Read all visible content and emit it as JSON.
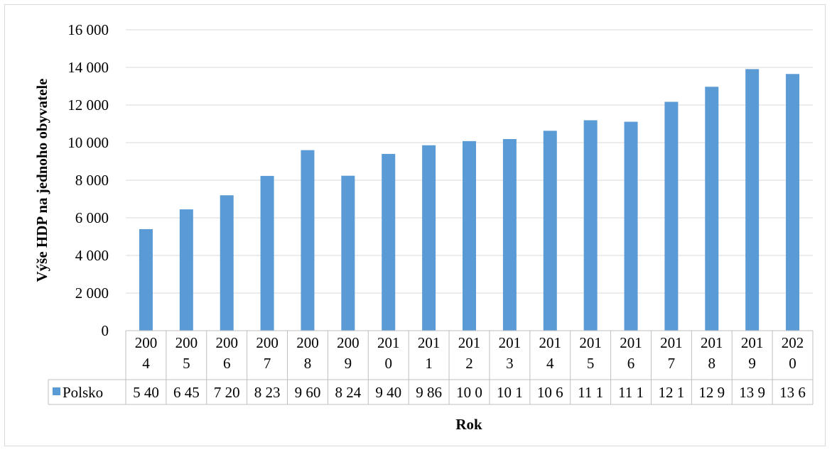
{
  "chart_data": {
    "type": "bar",
    "title": "",
    "ylabel": "Výše HDP na jednoho obyvatele",
    "xlabel": "Rok",
    "ylim": [
      0,
      16000
    ],
    "yticks": [
      0,
      2000,
      4000,
      6000,
      8000,
      10000,
      12000,
      14000,
      16000
    ],
    "ytick_labels": [
      "0",
      "2 000",
      "4 000",
      "6 000",
      "8 000",
      "10 000",
      "12 000",
      "14 000",
      "16 000"
    ],
    "grid": true,
    "legend": "data-table",
    "colors": {
      "bar": "#5b9bd5",
      "grid": "#d9d9d9",
      "table_border": "#bfbfbf"
    },
    "categories": [
      "2004",
      "2005",
      "2006",
      "2007",
      "2008",
      "2009",
      "2010",
      "2011",
      "2012",
      "2013",
      "2014",
      "2015",
      "2016",
      "2017",
      "2018",
      "2019",
      "2020"
    ],
    "category_label_lines": [
      [
        "200",
        "4"
      ],
      [
        "200",
        "5"
      ],
      [
        "200",
        "6"
      ],
      [
        "200",
        "7"
      ],
      [
        "200",
        "8"
      ],
      [
        "200",
        "9"
      ],
      [
        "201",
        "0"
      ],
      [
        "201",
        "1"
      ],
      [
        "201",
        "2"
      ],
      [
        "201",
        "3"
      ],
      [
        "201",
        "4"
      ],
      [
        "201",
        "5"
      ],
      [
        "201",
        "6"
      ],
      [
        "201",
        "7"
      ],
      [
        "201",
        "8"
      ],
      [
        "201",
        "9"
      ],
      [
        "202",
        "0"
      ]
    ],
    "series": [
      {
        "name": "Polsko",
        "values": [
          5400,
          6450,
          7200,
          8230,
          9600,
          8240,
          9400,
          9860,
          10080,
          10190,
          10630,
          11190,
          11110,
          12170,
          12970,
          13910,
          13650
        ],
        "table_labels": [
          "5 40",
          "6 45",
          "7 20",
          "8 23",
          "9 60",
          "8 24",
          "9 40",
          "9 86",
          "10 0",
          "10 1",
          "10 6",
          "11 1",
          "11 1",
          "12 1",
          "12 9",
          "13 9",
          "13 6"
        ]
      }
    ]
  }
}
